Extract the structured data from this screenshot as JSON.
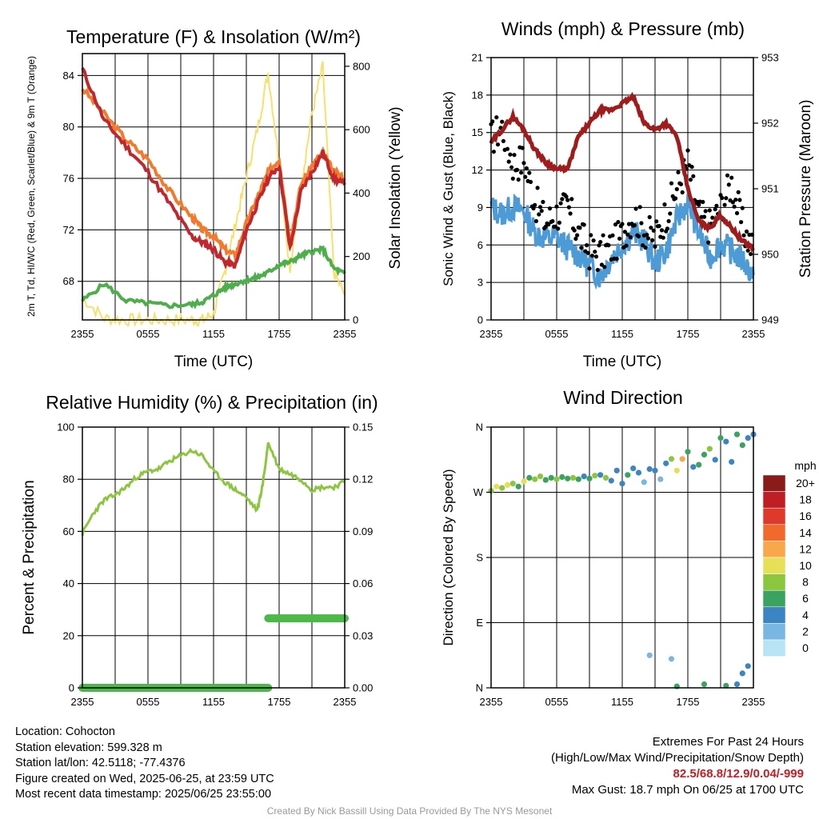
{
  "footer": {
    "location": "Location: Cohocton",
    "elevation": "Station elevation: 599.328 m",
    "latlon": "Station lat/lon: 42.5118; -77.4376",
    "created": "Figure created on Wed, 2025-06-25, at 23:59 UTC",
    "recent": "Most recent data timestamp: 2025/06/25 23:55:00",
    "extremes_title": "Extremes For Past 24 Hours",
    "extremes_sub": "(High/Low/Max Wind/Precipitation/Snow Depth)",
    "extremes_values": "82.5/68.8/12.9/0.04/-999",
    "max_gust": "Max Gust: 18.7 mph On 06/25 at 1700 UTC",
    "credit": "Created By Nick Bassill Using Data Provided By The NYS Mesonet"
  },
  "colors": {
    "temp": "#c1272d",
    "dewpoint": "#4daf4a",
    "hiwc": "#1a7a1a",
    "temp9m": "#f4792a",
    "solar": "#f7e06b",
    "wind": "#4d9bd6",
    "gust": "#000000",
    "pressure": "#a01c1c",
    "rh": "#8cc63f",
    "precip": "#4db84a"
  },
  "chart_data": [
    {
      "type": "line",
      "title": "Temperature (F) & Insolation (W/m²)",
      "xlabel": "Time (UTC)",
      "ylabel": "2m T, Td, HI/WC (Red, Green, Scarlet/Blue) & 9m T (Orange)",
      "ylabel_right": "Solar Insolation (Yellow)",
      "xticks": [
        "2355",
        "0555",
        "1155",
        "1755",
        "2355"
      ],
      "yticks_left": [
        "68",
        "72",
        "76",
        "80",
        "84"
      ],
      "yticks_right": [
        "0",
        "200",
        "400",
        "600",
        "800"
      ],
      "ylim": [
        65.0,
        85.7
      ],
      "ylim_right": [
        0,
        840
      ],
      "x": [
        0,
        2,
        4,
        6,
        8,
        10,
        11,
        12,
        13,
        14,
        15,
        16,
        17,
        18,
        19,
        20,
        21,
        22,
        23,
        24
      ],
      "series": [
        {
          "name": "2m T",
          "values": [
            84.5,
            80.5,
            78.5,
            76.5,
            74,
            71.5,
            71,
            70.5,
            69.5,
            69.2,
            72,
            74,
            76,
            77,
            70.5,
            75,
            76.5,
            78,
            76,
            75.5
          ]
        },
        {
          "name": "Td",
          "values": [
            66.5,
            67.8,
            66.5,
            66.3,
            66.1,
            66.2,
            66.4,
            66.9,
            67.5,
            67.8,
            68.1,
            68.3,
            68.7,
            69.3,
            69.5,
            70.0,
            70.3,
            70.5,
            69.0,
            68.6
          ]
        },
        {
          "name": "9m T",
          "values": [
            83,
            81,
            79,
            77.5,
            75,
            73,
            72,
            71.5,
            70.5,
            70,
            72.5,
            74.5,
            76.5,
            77.5,
            71,
            75.5,
            77,
            78,
            76.5,
            76
          ]
        },
        {
          "name": "Solar Insolation",
          "values": [
            70,
            5,
            0,
            0,
            0,
            0,
            0,
            20,
            150,
            300,
            450,
            600,
            780,
            500,
            150,
            420,
            650,
            800,
            150,
            80
          ]
        }
      ]
    },
    {
      "type": "line",
      "title": "Winds (mph) & Pressure (mb)",
      "xlabel": "Time (UTC)",
      "ylabel": "Sonic Wind & Gust (Blue, Black)",
      "ylabel_right": "Station Pressure (Maroon)",
      "xticks": [
        "2355",
        "0555",
        "1155",
        "1755",
        "2355"
      ],
      "yticks_left": [
        "0",
        "3",
        "6",
        "9",
        "12",
        "15",
        "18",
        "21"
      ],
      "yticks_right": [
        "949",
        "950",
        "951",
        "952",
        "953"
      ],
      "ylim": [
        0,
        21
      ],
      "ylim_right": [
        949,
        953
      ],
      "x": [
        0,
        1,
        2,
        3,
        4,
        5,
        6,
        7,
        8,
        9,
        10,
        11,
        12,
        13,
        14,
        15,
        16,
        17,
        18,
        19,
        20,
        21,
        22,
        23,
        24
      ],
      "series": [
        {
          "name": "Sonic Wind",
          "values": [
            9,
            8.5,
            9,
            8.7,
            7,
            6.5,
            6.6,
            5.8,
            5.2,
            4.3,
            3.5,
            5,
            6,
            7,
            6.4,
            4.5,
            5.5,
            8,
            9.5,
            7,
            5,
            6.2,
            5.5,
            4.8,
            3.6
          ]
        },
        {
          "name": "Gust",
          "values": [
            14.5,
            15.5,
            12.5,
            12.8,
            9.5,
            7.8,
            8.5,
            9,
            7,
            5.5,
            5.2,
            5.8,
            6.8,
            8.5,
            7.2,
            6.5,
            8.5,
            10.5,
            12.5,
            8.5,
            7.5,
            9,
            11,
            7.5,
            5.5
          ]
        },
        {
          "name": "Station Pressure",
          "values": [
            951.7,
            951.9,
            952.1,
            951.9,
            951.6,
            951.4,
            951.3,
            951.3,
            951.8,
            952.0,
            952.2,
            952.2,
            952.3,
            952.4,
            952.0,
            951.9,
            952.0,
            951.8,
            951.0,
            950.5,
            950.4,
            950.6,
            950.4,
            950.2,
            950.1
          ]
        }
      ]
    },
    {
      "type": "line",
      "title": "Relative Humidity (%) & Precipitation (in)",
      "xlabel": "",
      "ylabel": "Percent & Precipitation",
      "xticks": [
        "2355",
        "0555",
        "1155",
        "1755",
        "2355"
      ],
      "yticks_left": [
        "0",
        "20",
        "40",
        "60",
        "80",
        "100"
      ],
      "yticks_right": [
        "0.00",
        "0.03",
        "0.06",
        "0.09",
        "0.12",
        "0.15"
      ],
      "ylim": [
        0,
        100
      ],
      "ylim_right": [
        0,
        0.15
      ],
      "x": [
        0,
        1,
        2,
        3,
        4,
        5,
        6,
        7,
        8,
        9,
        10,
        11,
        12,
        13,
        14,
        15,
        16,
        16.5,
        17,
        18,
        19,
        20,
        21,
        22,
        23,
        24
      ],
      "series": [
        {
          "name": "Relative Humidity",
          "values": [
            59,
            67,
            72,
            74,
            77,
            81,
            83,
            84,
            87,
            89,
            91,
            89,
            83,
            79,
            76,
            73,
            68,
            78,
            94,
            84,
            82,
            80,
            76,
            77,
            77,
            79
          ]
        },
        {
          "name": "Precipitation",
          "values": [
            0,
            0,
            0,
            0,
            0,
            0,
            0,
            0,
            0,
            0,
            0,
            0,
            0,
            0,
            0,
            0,
            0,
            0,
            0.04,
            0.04,
            0.04,
            0.04,
            0.04,
            0.04,
            0.04,
            0.04
          ]
        }
      ]
    },
    {
      "type": "scatter",
      "title": "Wind Direction",
      "xlabel": "",
      "ylabel": "Direction (Colored By Speed)",
      "xticks": [
        "2355",
        "0555",
        "1155",
        "1755",
        "2355"
      ],
      "yticks_left": [
        "N",
        "E",
        "S",
        "W",
        "N"
      ],
      "ylim": [
        0,
        360
      ],
      "legend_title": "mph",
      "legend_labels": [
        "20+",
        "18",
        "16",
        "14",
        "12",
        "10",
        "8",
        "6",
        "4",
        "2",
        "0"
      ],
      "legend_colors": [
        "#8b1a1a",
        "#bf1e24",
        "#de3a2b",
        "#f26a2b",
        "#f9a74b",
        "#e6df58",
        "#8cc63f",
        "#3aa35f",
        "#3a85c2",
        "#79b7e2",
        "#b7e3f5"
      ],
      "x": [
        0,
        0.5,
        1,
        1.5,
        2,
        2.5,
        3,
        3.5,
        4,
        4.5,
        5,
        5.5,
        6,
        6.5,
        7,
        7.5,
        8,
        8.5,
        9,
        9.5,
        10,
        10.5,
        11,
        11.5,
        12,
        12.5,
        13,
        13.5,
        14,
        14.5,
        15,
        15.5,
        16,
        16.5,
        17,
        17.5,
        18,
        18.5,
        19,
        19.5,
        20,
        20.5,
        21,
        21.5,
        22,
        22.5,
        23,
        23.5,
        24,
        14.5,
        16.5,
        17,
        19.5,
        21.5,
        22.5,
        23,
        23.5
      ],
      "series": [
        {
          "name": "Direction",
          "values": [
            272,
            278,
            276,
            280,
            282,
            278,
            285,
            290,
            288,
            292,
            287,
            290,
            288,
            291,
            289,
            290,
            288,
            292,
            289,
            293,
            294,
            290,
            286,
            300,
            282,
            294,
            303,
            297,
            284,
            302,
            300,
            288,
            310,
            316,
            300,
            316,
            326,
            305,
            308,
            322,
            330,
            315,
            345,
            340,
            312,
            350,
            335,
            345,
            350,
            45,
            40,
            2,
            5,
            3,
            5,
            20,
            30
          ]
        },
        {
          "name": "Speed",
          "values": [
            8,
            10,
            8,
            10,
            7,
            6,
            9,
            6,
            7,
            7,
            6,
            6,
            7,
            5,
            6,
            7,
            6,
            4,
            6,
            8,
            4,
            7,
            4,
            4,
            4,
            5,
            4,
            3,
            2,
            4,
            4,
            2,
            4,
            8,
            10,
            12,
            6,
            4,
            6,
            6,
            7,
            4,
            6,
            4,
            4,
            6,
            6,
            4,
            4,
            2,
            2,
            6,
            6,
            6,
            4,
            4,
            4
          ]
        }
      ]
    }
  ]
}
